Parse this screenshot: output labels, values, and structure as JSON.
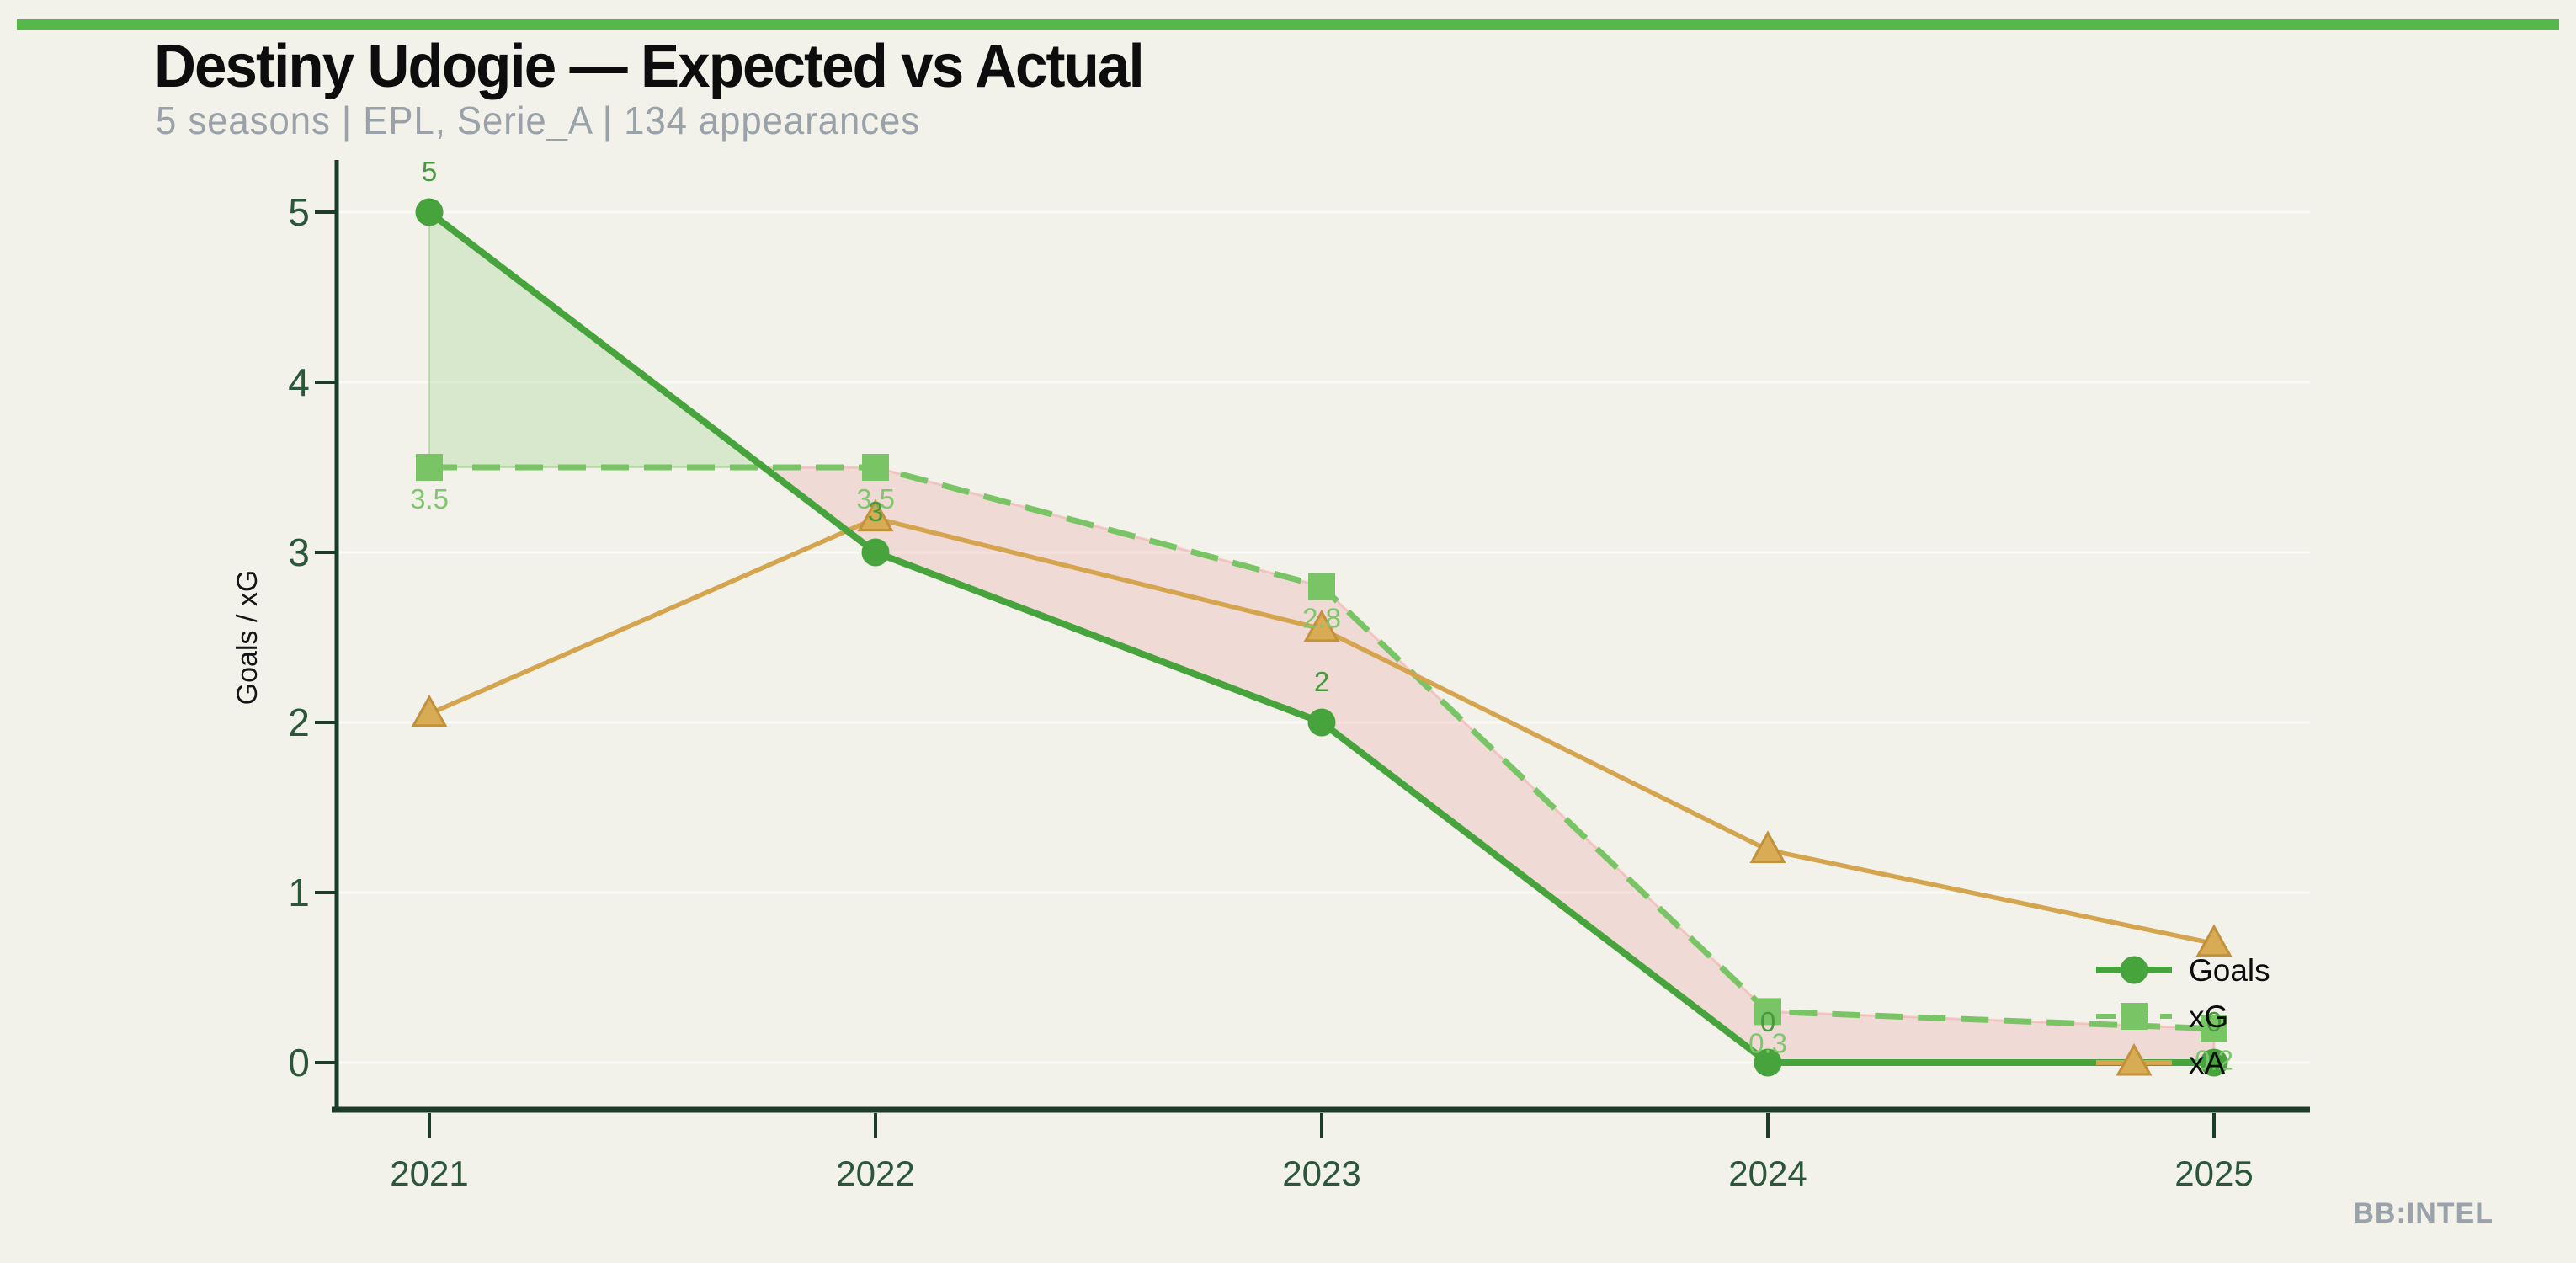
{
  "page": {
    "background": "#f2f2eb",
    "accent_bar_color": "#55b84a"
  },
  "header": {
    "title": "Destiny Udogie — Expected vs Actual",
    "subtitle": "5 seasons | EPL, Serie_A | 134 appearances"
  },
  "watermark": {
    "text": "BB:INTEL"
  },
  "legend": {
    "items": [
      "Goals",
      "xG",
      "xA"
    ]
  },
  "chart_data": {
    "type": "line",
    "title": "Destiny Udogie — Expected vs Actual",
    "categories": [
      "2021",
      "2022",
      "2023",
      "2024",
      "2025"
    ],
    "xlabel": "",
    "ylabel": "Goals / xG",
    "ylim": [
      0,
      5.25
    ],
    "yticks": [
      "0",
      "1",
      "2",
      "3",
      "4",
      "5"
    ],
    "grid": "faint horizontal gridlines",
    "legend_position": "inside lower right",
    "series": [
      {
        "name": "Goals",
        "values": [
          5,
          3,
          2,
          0,
          0
        ],
        "color": "#47a33c",
        "line": "solid",
        "marker": "circle",
        "point_labels": [
          "5",
          "3",
          "2",
          "0",
          "0"
        ],
        "label_color": "#47993d",
        "label_position": "above"
      },
      {
        "name": "xG",
        "values": [
          3.5,
          3.5,
          2.8,
          0.3,
          0.2
        ],
        "color": "#79c566",
        "line": "dashed",
        "marker": "square",
        "point_labels": [
          "3.5",
          "3.5",
          "2.8",
          "0.3",
          "0.2"
        ],
        "label_color": "#7fc66e",
        "label_position": "below"
      },
      {
        "name": "xA",
        "values": [
          2.05,
          3.2,
          2.55,
          1.25,
          0.7
        ],
        "color": "#d5a44e",
        "line": "solid",
        "marker": "triangle",
        "point_labels": [],
        "label_color": "#d5a44e",
        "label_position": "none"
      }
    ],
    "fill_between": {
      "series_a": "Goals",
      "series_b": "xG",
      "positive_color": "rgba(122,197,102,0.22)",
      "positive_edge": "rgba(150,205,130,0.55)",
      "negative_color": "rgba(228,125,125,0.20)",
      "negative_edge": "rgba(242,170,170,0.55)"
    },
    "axis_color": "#1c3c29",
    "tick_label_color": "#2b5639",
    "gridline_color": "rgba(255,255,255,0.6)"
  }
}
